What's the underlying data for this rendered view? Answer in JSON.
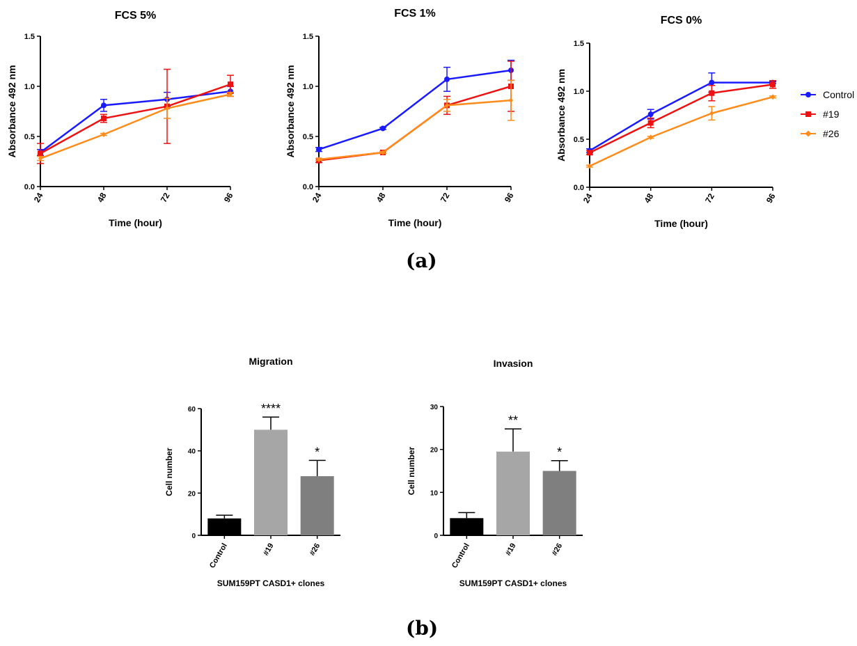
{
  "panel_labels": {
    "a": "(a)",
    "b": "(b)"
  },
  "legend": [
    {
      "name": "Control",
      "color": "#1a1aff",
      "marker": "circle"
    },
    {
      "name": "#19",
      "color": "#ee1111",
      "marker": "square"
    },
    {
      "name": "#26",
      "color": "#ff8c1a",
      "marker": "diamond"
    }
  ],
  "chart_data": [
    {
      "type": "line",
      "title": "FCS 5%",
      "xlabel": "Time (hour)",
      "ylabel": "Absorbance 492 nm",
      "x": [
        "24",
        "48",
        "72",
        "96"
      ],
      "ylim": [
        0,
        1.5
      ],
      "yticks": [
        "0.0",
        "0.5",
        "1.0",
        "1.5"
      ],
      "series": [
        {
          "name": "Control",
          "color": "#1a1aff",
          "marker": "circle",
          "values": [
            0.34,
            0.81,
            0.87,
            0.95
          ],
          "errors": [
            0.03,
            0.06,
            0.07,
            0.05
          ]
        },
        {
          "name": "#19",
          "color": "#ee1111",
          "marker": "square",
          "values": [
            0.33,
            0.68,
            0.8,
            1.02
          ],
          "errors": [
            0.1,
            0.04,
            0.37,
            0.09
          ]
        },
        {
          "name": "#26",
          "color": "#ff8c1a",
          "marker": "diamond",
          "values": [
            0.28,
            0.52,
            0.78,
            0.92
          ],
          "errors": [
            0.02,
            0.01,
            0.1,
            0.02
          ]
        }
      ]
    },
    {
      "type": "line",
      "title": "FCS 1%",
      "xlabel": "Time (hour)",
      "ylabel": "Absorbance 492 nm",
      "x": [
        "24",
        "48",
        "72",
        "96"
      ],
      "ylim": [
        0,
        1.5
      ],
      "yticks": [
        "0.0",
        "0.5",
        "1.0",
        "1.5"
      ],
      "series": [
        {
          "name": "Control",
          "color": "#1a1aff",
          "marker": "circle",
          "values": [
            0.37,
            0.58,
            1.07,
            1.16
          ],
          "errors": [
            0.02,
            0.01,
            0.12,
            0.1
          ]
        },
        {
          "name": "#19",
          "color": "#ee1111",
          "marker": "square",
          "values": [
            0.26,
            0.34,
            0.81,
            1.0
          ],
          "errors": [
            0.02,
            0.01,
            0.09,
            0.25
          ]
        },
        {
          "name": "#26",
          "color": "#ff8c1a",
          "marker": "diamond",
          "values": [
            0.27,
            0.34,
            0.81,
            0.86
          ],
          "errors": [
            0.01,
            0.01,
            0.06,
            0.2
          ]
        }
      ]
    },
    {
      "type": "line",
      "title": "FCS 0%",
      "xlabel": "Time (hour)",
      "ylabel": "Absorbance 492 nm",
      "x": [
        "24",
        "48",
        "72",
        "96"
      ],
      "ylim": [
        0,
        1.5
      ],
      "yticks": [
        "0.0",
        "0.5",
        "1.0",
        "1.5"
      ],
      "series": [
        {
          "name": "Control",
          "color": "#1a1aff",
          "marker": "circle",
          "values": [
            0.38,
            0.76,
            1.09,
            1.09
          ],
          "errors": [
            0.02,
            0.05,
            0.1,
            0.01
          ]
        },
        {
          "name": "#19",
          "color": "#ee1111",
          "marker": "square",
          "values": [
            0.36,
            0.67,
            0.98,
            1.07
          ],
          "errors": [
            0.02,
            0.05,
            0.08,
            0.04
          ]
        },
        {
          "name": "#26",
          "color": "#ff8c1a",
          "marker": "diamond",
          "values": [
            0.22,
            0.52,
            0.77,
            0.94
          ],
          "errors": [
            0.01,
            0.01,
            0.07,
            0.01
          ]
        }
      ]
    },
    {
      "type": "bar",
      "title": "Migration",
      "xlabel": "SUM159PT CASD1+ clones",
      "ylabel": "Cell number",
      "categories": [
        "Control",
        "#19",
        "#26"
      ],
      "values": [
        8,
        50,
        28
      ],
      "errors": [
        1.5,
        6,
        7.5
      ],
      "significance": [
        "",
        "****",
        "*"
      ],
      "colors": [
        "#000000",
        "#a6a6a6",
        "#7f7f7f"
      ],
      "ylim": [
        0,
        60
      ],
      "yticks": [
        "0",
        "20",
        "40",
        "60"
      ]
    },
    {
      "type": "bar",
      "title": "Invasion",
      "xlabel": "SUM159PT CASD1+ clones",
      "ylabel": "Cell number",
      "categories": [
        "Control",
        "#19",
        "#26"
      ],
      "values": [
        4,
        19.5,
        15
      ],
      "errors": [
        1.3,
        5.3,
        2.4
      ],
      "significance": [
        "",
        "**",
        "*"
      ],
      "colors": [
        "#000000",
        "#a6a6a6",
        "#7f7f7f"
      ],
      "ylim": [
        0,
        30
      ],
      "yticks": [
        "0",
        "10",
        "20",
        "30"
      ]
    }
  ]
}
